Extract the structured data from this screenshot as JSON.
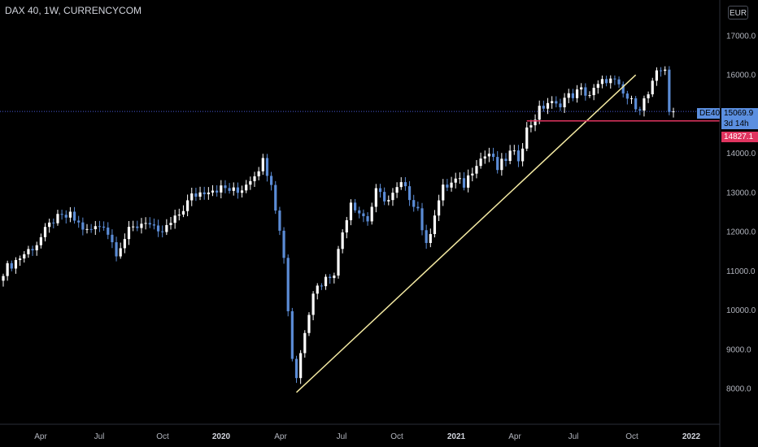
{
  "header": {
    "title": "DAX 40, 1W, CURRENCYCOM"
  },
  "currency_button": "EUR",
  "price_labels": {
    "symbol": "DE40",
    "last_price": "15069.9",
    "countdown": "3d 14h",
    "line_price": "14827.1"
  },
  "colors": {
    "background": "#000000",
    "up": "#ffffff",
    "down": "#5b8cd6",
    "trendline": "#f3e9a2",
    "support": "#e0345f",
    "last_price_line": "#4a5bd8",
    "last_price_tag": "#5b8fe0",
    "axis_text": "#b2b5be"
  },
  "chart_data": {
    "type": "candlestick",
    "title": "DAX 40, 1W, CURRENCYCOM",
    "ylim": [
      7500,
      17500
    ],
    "y_ticks": [
      "8000.0",
      "9000.0",
      "10000.0",
      "11000.0",
      "12000.0",
      "13000.0",
      "14000.0",
      "15000.0",
      "16000.0",
      "17000.0"
    ],
    "x_ticks": [
      {
        "label": "Apr",
        "bold": false
      },
      {
        "label": "Jul",
        "bold": false
      },
      {
        "label": "Oct",
        "bold": false
      },
      {
        "label": "2020",
        "bold": true
      },
      {
        "label": "Apr",
        "bold": false
      },
      {
        "label": "Jul",
        "bold": false
      },
      {
        "label": "Oct",
        "bold": false
      },
      {
        "label": "2021",
        "bold": true
      },
      {
        "label": "Apr",
        "bold": false
      },
      {
        "label": "Jul",
        "bold": false
      },
      {
        "label": "Oct",
        "bold": false
      },
      {
        "label": "2022",
        "bold": true
      }
    ],
    "keypoints": [
      [
        0,
        11000
      ],
      [
        8,
        11700
      ],
      [
        12,
        12300
      ],
      [
        16,
        12400
      ],
      [
        20,
        12000
      ],
      [
        24,
        12200
      ],
      [
        27,
        11500
      ],
      [
        30,
        12000
      ],
      [
        34,
        12300
      ],
      [
        37,
        11900
      ],
      [
        41,
        12300
      ],
      [
        45,
        12900
      ],
      [
        49,
        13100
      ],
      [
        53,
        13100
      ],
      [
        56,
        13000
      ],
      [
        60,
        13500
      ],
      [
        62,
        13800
      ],
      [
        64,
        13300
      ],
      [
        66,
        12000
      ],
      [
        67,
        11400
      ],
      [
        68,
        10000
      ],
      [
        69,
        8800
      ],
      [
        70,
        8300
      ],
      [
        72,
        9500
      ],
      [
        74,
        10500
      ],
      [
        77,
        10800
      ],
      [
        79,
        11000
      ],
      [
        81,
        12000
      ],
      [
        83,
        12800
      ],
      [
        85,
        12500
      ],
      [
        87,
        12300
      ],
      [
        89,
        13000
      ],
      [
        92,
        12800
      ],
      [
        95,
        13200
      ],
      [
        97,
        12900
      ],
      [
        99,
        12600
      ],
      [
        101,
        11600
      ],
      [
        103,
        12500
      ],
      [
        105,
        13100
      ],
      [
        108,
        13300
      ],
      [
        110,
        13200
      ],
      [
        113,
        13800
      ],
      [
        116,
        14000
      ],
      [
        118,
        13600
      ],
      [
        121,
        14000
      ],
      [
        123,
        13900
      ],
      [
        125,
        14600
      ],
      [
        128,
        15100
      ],
      [
        130,
        15300
      ],
      [
        132,
        15200
      ],
      [
        134,
        15400
      ],
      [
        136,
        15500
      ],
      [
        138,
        15600
      ],
      [
        140,
        15500
      ],
      [
        142,
        15700
      ],
      [
        144,
        15900
      ],
      [
        146,
        15800
      ],
      [
        148,
        15500
      ],
      [
        150,
        15300
      ],
      [
        152,
        15200
      ],
      [
        154,
        15500
      ],
      [
        156,
        16000
      ],
      [
        158,
        16200
      ],
      [
        159,
        15100
      ],
      [
        160,
        15069.9
      ]
    ],
    "total_weeks": 161,
    "trendline": {
      "start": {
        "week": 70,
        "value": 7900
      },
      "end": {
        "week": 151,
        "value": 16000
      }
    },
    "support_line": {
      "value": 14827.1,
      "start_week": 125
    },
    "last_price": 15069.9
  }
}
